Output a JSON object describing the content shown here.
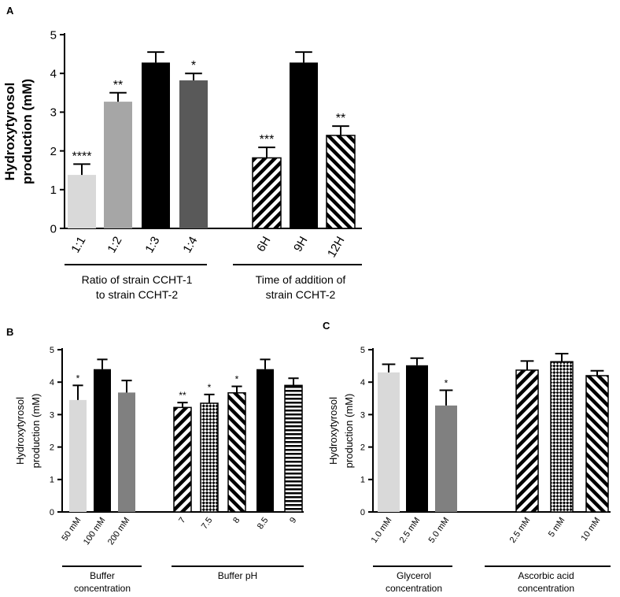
{
  "chart_data": [
    {
      "panel": "A",
      "type": "bar",
      "ylabel_lines": [
        "Hydroxytyrosol",
        "production (mM)"
      ],
      "ylim": [
        0,
        5
      ],
      "yticks": [
        "0",
        "1",
        "2",
        "3",
        "4",
        "5"
      ],
      "bars": [
        {
          "label": "1:1",
          "value": 1.38,
          "error": 0.28,
          "sig": "****",
          "fill": "#d9d9d9"
        },
        {
          "label": "1:2",
          "value": 3.27,
          "error": 0.23,
          "sig": "**",
          "fill": "#a6a6a6"
        },
        {
          "label": "1:3",
          "value": 4.28,
          "error": 0.27,
          "sig": "",
          "fill": "#000000"
        },
        {
          "label": "1:4",
          "value": 3.82,
          "error": 0.18,
          "sig": "*",
          "fill": "#595959"
        },
        {
          "label": "6H",
          "value": 1.82,
          "error": 0.27,
          "sig": "***",
          "fill": "hatch-back"
        },
        {
          "label": "9H",
          "value": 4.28,
          "error": 0.27,
          "sig": "",
          "fill": "#000000"
        },
        {
          "label": "12H",
          "value": 2.4,
          "error": 0.24,
          "sig": "**",
          "fill": "hatch-fwd"
        }
      ],
      "groups": [
        {
          "lines": [
            "Ratio of strain CCHT-1",
            "to strain CCHT-2"
          ]
        },
        {
          "lines": [
            "Time of addition of",
            "strain CCHT-2"
          ]
        }
      ]
    },
    {
      "panel": "B",
      "type": "bar",
      "ylabel_lines": [
        "Hydroxytyrosol",
        "production (mM)"
      ],
      "ylim": [
        0,
        5
      ],
      "yticks": [
        "0",
        "1",
        "2",
        "3",
        "4",
        "5"
      ],
      "bars": [
        {
          "label": "50 mM",
          "value": 3.45,
          "error": 0.45,
          "sig": "*",
          "fill": "#d9d9d9"
        },
        {
          "label": "100 mM",
          "value": 4.4,
          "error": 0.3,
          "sig": "",
          "fill": "#000000"
        },
        {
          "label": "200 mM",
          "value": 3.68,
          "error": 0.37,
          "sig": "",
          "fill": "#808080"
        },
        {
          "label": "7",
          "value": 3.22,
          "error": 0.15,
          "sig": "**",
          "fill": "hatch-back"
        },
        {
          "label": "7.5",
          "value": 3.35,
          "error": 0.27,
          "sig": "*",
          "fill": "checker"
        },
        {
          "label": "8",
          "value": 3.67,
          "error": 0.2,
          "sig": "*",
          "fill": "hatch-fwd"
        },
        {
          "label": "8.5",
          "value": 4.4,
          "error": 0.3,
          "sig": "",
          "fill": "#000000"
        },
        {
          "label": "9",
          "value": 3.9,
          "error": 0.22,
          "sig": "",
          "fill": "hstripe"
        }
      ],
      "groups": [
        {
          "lines": [
            "Buffer",
            "concentration"
          ]
        },
        {
          "lines": [
            "Buffer pH"
          ]
        }
      ]
    },
    {
      "panel": "C",
      "type": "bar",
      "ylabel_lines": [
        "Hydroxytyrosol",
        "production (mM)"
      ],
      "ylim": [
        0,
        5
      ],
      "yticks": [
        "0",
        "1",
        "2",
        "3",
        "4",
        "5"
      ],
      "bars": [
        {
          "label": "1.0 mM",
          "value": 4.3,
          "error": 0.25,
          "sig": "",
          "fill": "#d9d9d9"
        },
        {
          "label": "2.5 mM",
          "value": 4.52,
          "error": 0.22,
          "sig": "",
          "fill": "#000000"
        },
        {
          "label": "5.0 mM",
          "value": 3.28,
          "error": 0.47,
          "sig": "*",
          "fill": "#808080"
        },
        {
          "label": "2.5 mM",
          "value": 4.37,
          "error": 0.28,
          "sig": "",
          "fill": "hatch-back"
        },
        {
          "label": "5 mM",
          "value": 4.63,
          "error": 0.25,
          "sig": "",
          "fill": "checker"
        },
        {
          "label": "10 mM",
          "value": 4.2,
          "error": 0.15,
          "sig": "",
          "fill": "hatch-fwd"
        }
      ],
      "groups": [
        {
          "lines": [
            "Glycerol",
            "concentration"
          ]
        },
        {
          "lines": [
            "Ascorbic acid",
            "concentration"
          ]
        }
      ]
    }
  ]
}
